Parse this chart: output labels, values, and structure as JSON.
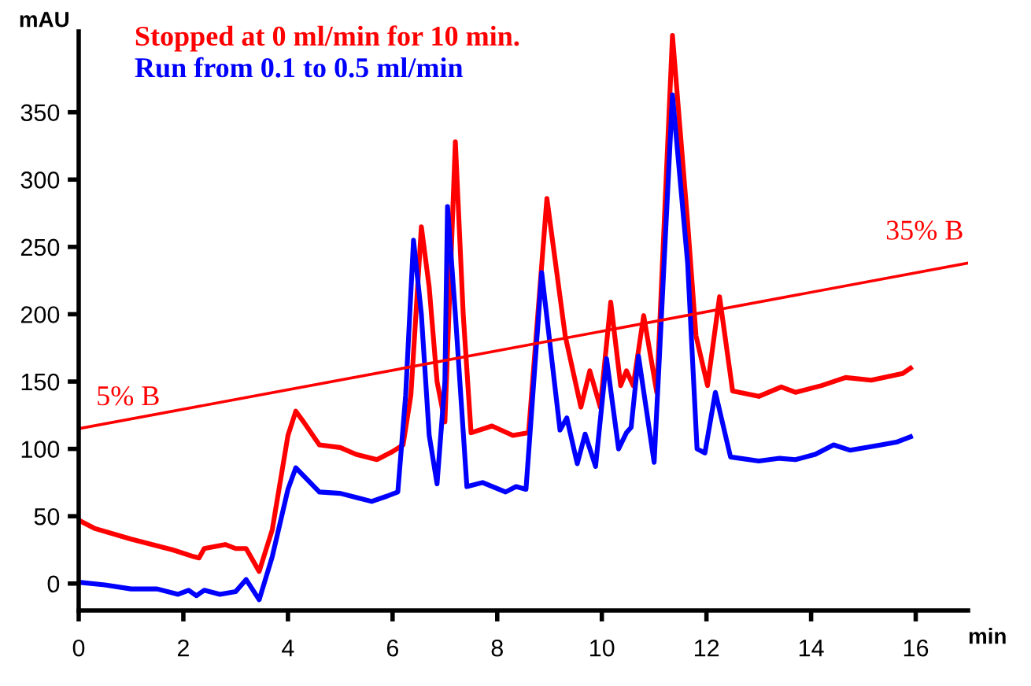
{
  "chart_data": {
    "type": "line",
    "xlabel": "min",
    "ylabel": "mAU",
    "xlim": [
      0,
      17
    ],
    "ylim": [
      -20,
      410
    ],
    "xticks": [
      0,
      2,
      4,
      6,
      8,
      10,
      12,
      14,
      16
    ],
    "yticks": [
      0,
      50,
      100,
      150,
      200,
      250,
      300,
      350
    ],
    "grid": false,
    "legend": "top left",
    "marker": "none",
    "line_style": "solid",
    "annotations": [
      {
        "text": "5% B",
        "x": 0,
        "y": 115
      },
      {
        "text": "35% B",
        "x": 17,
        "y": 238
      }
    ],
    "series": [
      {
        "name": "Stopped at 0 ml/min for 10 min.",
        "color": "#ff0000",
        "x": [
          0,
          0.3,
          1,
          1.8,
          2.2,
          2.3,
          2.4,
          2.8,
          3.0,
          3.2,
          3.45,
          3.7,
          4.0,
          4.15,
          4.3,
          4.6,
          5.0,
          5.3,
          5.7,
          6.0,
          6.2,
          6.35,
          6.55,
          6.7,
          6.85,
          7.0,
          7.2,
          7.35,
          7.5,
          7.9,
          8.3,
          8.6,
          8.95,
          9.3,
          9.6,
          9.77,
          9.97,
          10.17,
          10.36,
          10.47,
          10.6,
          10.8,
          11.05,
          11.35,
          11.64,
          11.8,
          12.02,
          12.25,
          12.5,
          13.0,
          13.43,
          13.7,
          14.2,
          14.66,
          15.15,
          15.75,
          15.9
        ],
        "values": [
          47,
          41,
          33,
          25,
          20,
          19,
          26,
          29,
          26,
          26,
          9,
          40,
          110,
          128,
          120,
          103,
          101,
          96,
          92,
          98,
          103,
          140,
          265,
          220,
          150,
          120,
          328,
          200,
          112,
          117,
          110,
          112,
          286,
          184,
          131,
          158,
          131,
          209,
          147,
          158,
          147,
          199,
          142,
          407,
          268,
          184,
          147,
          213,
          143,
          139,
          146,
          142,
          147,
          153,
          151,
          156,
          160
        ]
      },
      {
        "name": "Run from 0.1 to 0.5 ml/min",
        "color": "#0000ff",
        "x": [
          0,
          0.5,
          1,
          1.5,
          1.9,
          2.1,
          2.25,
          2.4,
          2.7,
          3.0,
          3.2,
          3.45,
          3.7,
          4.0,
          4.15,
          4.3,
          4.6,
          5.0,
          5.3,
          5.6,
          5.9,
          6.1,
          6.25,
          6.4,
          6.55,
          6.7,
          6.85,
          7.0,
          7.05,
          7.2,
          7.42,
          7.72,
          8.16,
          8.36,
          8.55,
          8.85,
          9.2,
          9.33,
          9.53,
          9.68,
          9.88,
          10.09,
          10.32,
          10.47,
          10.56,
          10.7,
          11.0,
          11.35,
          11.64,
          11.82,
          11.97,
          12.17,
          12.46,
          13.0,
          13.4,
          13.7,
          14.08,
          14.43,
          14.75,
          15.34,
          15.63,
          15.9
        ],
        "values": [
          1,
          -1,
          -4,
          -4,
          -8,
          -5,
          -9,
          -5,
          -8,
          -6,
          3,
          -12,
          20,
          70,
          86,
          80,
          68,
          67,
          64,
          61,
          65,
          68,
          140,
          255,
          200,
          110,
          74,
          150,
          280,
          200,
          72,
          75,
          68,
          72,
          70,
          231,
          114,
          123,
          89,
          111,
          87,
          167,
          100,
          112,
          116,
          169,
          90,
          363,
          238,
          100,
          97,
          142,
          94,
          91,
          93,
          92,
          96,
          103,
          99,
          103,
          105,
          109
        ]
      },
      {
        "type": "line",
        "color": "#ff0000",
        "x": [
          0,
          17
        ],
        "values": [
          115,
          238
        ]
      }
    ]
  }
}
